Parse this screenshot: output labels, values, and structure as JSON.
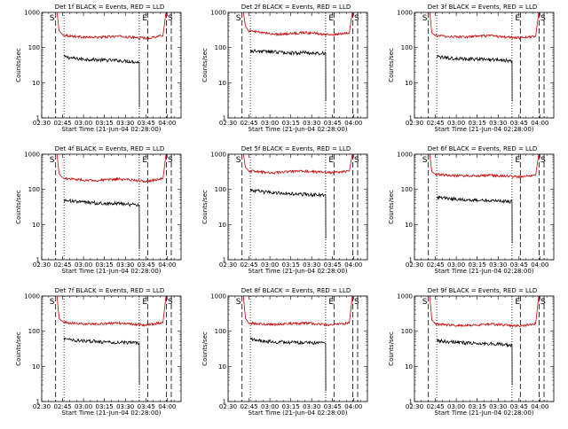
{
  "figure": {
    "xlabel": "Start Time (21-Jun-04 02:28:00)",
    "ylabel": "Counts/sec",
    "x_ticks": [
      "02:30",
      "02:45",
      "03:00",
      "03:15",
      "03:30",
      "03:45",
      "04:00"
    ],
    "y_ticks": [
      "1",
      "10",
      "100",
      "1000"
    ],
    "marker_labels": [
      "S",
      "E",
      "S"
    ],
    "colors": {
      "events": "#000000",
      "lld": "#cc0000",
      "axes": "#000000"
    }
  },
  "chart_data": [
    {
      "type": "line",
      "title": "Det 1f BLACK = Events, RED = LLD",
      "xlabel": "Start Time (21-Jun-04 02:28:00)",
      "ylabel": "Counts/sec",
      "yscale": "log",
      "ylim": [
        1,
        1000
      ],
      "xlim_min": [
        150,
        250
      ],
      "x_ticks": [
        "02:30",
        "02:45",
        "03:00",
        "03:15",
        "03:30",
        "03:45",
        "04:00"
      ],
      "markers": {
        "dashed": [
          160,
          226,
          239.5,
          243
        ],
        "dotted": [
          166,
          220
        ]
      },
      "series": [
        {
          "name": "Events",
          "color": "#000000",
          "x": [
            166,
            175,
            185,
            195,
            205,
            215,
            220,
            220.1
          ],
          "y": [
            55,
            48,
            46,
            44,
            43,
            40,
            38,
            2
          ]
        },
        {
          "name": "LLD",
          "color": "#cc0000",
          "x": [
            161,
            162.5,
            165,
            175,
            185,
            195,
            205,
            215,
            225,
            237,
            239.2
          ],
          "y": [
            1000,
            300,
            230,
            205,
            195,
            200,
            210,
            195,
            185,
            220,
            1000
          ]
        }
      ]
    },
    {
      "type": "line",
      "title": "Det 2f BLACK = Events, RED = LLD",
      "xlabel": "Start Time (21-Jun-04 02:28:00)",
      "ylabel": "Counts/sec",
      "yscale": "log",
      "ylim": [
        1,
        1000
      ],
      "xlim_min": [
        150,
        250
      ],
      "x_ticks": [
        "02:30",
        "02:45",
        "03:00",
        "03:15",
        "03:30",
        "03:45",
        "04:00"
      ],
      "markers": {
        "dashed": [
          160,
          226,
          239.5,
          243
        ],
        "dotted": [
          166,
          220
        ]
      },
      "series": [
        {
          "name": "Events",
          "color": "#000000",
          "x": [
            166,
            175,
            185,
            195,
            205,
            215,
            220,
            220.1
          ],
          "y": [
            80,
            78,
            75,
            70,
            72,
            68,
            70,
            3
          ]
        },
        {
          "name": "LLD",
          "color": "#cc0000",
          "x": [
            161,
            162.5,
            165,
            175,
            185,
            195,
            205,
            215,
            225,
            237,
            239.2
          ],
          "y": [
            1000,
            400,
            300,
            260,
            240,
            250,
            270,
            250,
            230,
            260,
            1000
          ]
        }
      ]
    },
    {
      "type": "line",
      "title": "Det 3f BLACK = Events, RED = LLD",
      "xlabel": "Start Time (21-Jun-04 02:28:00)",
      "ylabel": "Counts/sec",
      "yscale": "log",
      "ylim": [
        1,
        1000
      ],
      "xlim_min": [
        150,
        250
      ],
      "x_ticks": [
        "02:30",
        "02:45",
        "03:00",
        "03:15",
        "03:30",
        "03:45",
        "04:00"
      ],
      "markers": {
        "dashed": [
          160,
          226,
          239.5,
          243
        ],
        "dotted": [
          166,
          220
        ]
      },
      "series": [
        {
          "name": "Events",
          "color": "#000000",
          "x": [
            166,
            175,
            185,
            195,
            205,
            215,
            220,
            220.1
          ],
          "y": [
            55,
            50,
            48,
            47,
            46,
            44,
            42,
            3
          ]
        },
        {
          "name": "LLD",
          "color": "#cc0000",
          "x": [
            161,
            162.5,
            165,
            175,
            185,
            195,
            205,
            215,
            225,
            237,
            239.2
          ],
          "y": [
            1000,
            260,
            220,
            205,
            200,
            210,
            215,
            200,
            190,
            210,
            1000
          ]
        }
      ]
    },
    {
      "type": "line",
      "title": "Det 4f BLACK = Events, RED = LLD",
      "xlabel": "Start Time (21-Jun-04 02:28:00)",
      "ylabel": "Counts/sec",
      "yscale": "log",
      "ylim": [
        1,
        1000
      ],
      "xlim_min": [
        150,
        250
      ],
      "x_ticks": [
        "02:30",
        "02:45",
        "03:00",
        "03:15",
        "03:30",
        "03:45",
        "04:00"
      ],
      "markers": {
        "dashed": [
          160,
          226,
          239.5,
          243
        ],
        "dotted": [
          166,
          220
        ]
      },
      "series": [
        {
          "name": "Events",
          "color": "#000000",
          "x": [
            166,
            175,
            185,
            195,
            205,
            215,
            220,
            220.1
          ],
          "y": [
            50,
            45,
            42,
            40,
            40,
            37,
            35,
            2
          ]
        },
        {
          "name": "LLD",
          "color": "#cc0000",
          "x": [
            161,
            162.5,
            165,
            175,
            185,
            195,
            205,
            215,
            225,
            237,
            239.2
          ],
          "y": [
            1000,
            280,
            210,
            190,
            180,
            185,
            195,
            185,
            170,
            200,
            1000
          ]
        }
      ]
    },
    {
      "type": "line",
      "title": "Det 5f BLACK = Events, RED = LLD",
      "xlabel": "Start Time (21-Jun-04 02:28:00)",
      "ylabel": "Counts/sec",
      "yscale": "log",
      "ylim": [
        1,
        1000
      ],
      "xlim_min": [
        150,
        250
      ],
      "x_ticks": [
        "02:30",
        "02:45",
        "03:00",
        "03:15",
        "03:30",
        "03:45",
        "04:00"
      ],
      "markers": {
        "dashed": [
          160,
          226,
          239.5,
          243
        ],
        "dotted": [
          166,
          220
        ]
      },
      "series": [
        {
          "name": "Events",
          "color": "#000000",
          "x": [
            166,
            175,
            185,
            195,
            205,
            215,
            220,
            220.1
          ],
          "y": [
            95,
            85,
            80,
            75,
            72,
            70,
            70,
            4
          ]
        },
        {
          "name": "LLD",
          "color": "#cc0000",
          "x": [
            161,
            162.5,
            165,
            175,
            185,
            195,
            205,
            215,
            225,
            237,
            239.2
          ],
          "y": [
            1000,
            420,
            340,
            310,
            300,
            320,
            330,
            310,
            300,
            330,
            1000
          ]
        }
      ]
    },
    {
      "type": "line",
      "title": "Det 6f BLACK = Events, RED = LLD",
      "xlabel": "Start Time (21-Jun-04 02:28:00)",
      "ylabel": "Counts/sec",
      "yscale": "log",
      "ylim": [
        1,
        1000
      ],
      "xlim_min": [
        150,
        250
      ],
      "x_ticks": [
        "02:30",
        "02:45",
        "03:00",
        "03:15",
        "03:30",
        "03:45",
        "04:00"
      ],
      "markers": {
        "dashed": [
          160,
          226,
          239.5,
          243
        ],
        "dotted": [
          166,
          220
        ]
      },
      "series": [
        {
          "name": "Events",
          "color": "#000000",
          "x": [
            166,
            175,
            185,
            195,
            205,
            215,
            220,
            220.1
          ],
          "y": [
            60,
            55,
            52,
            50,
            48,
            46,
            45,
            3
          ]
        },
        {
          "name": "LLD",
          "color": "#cc0000",
          "x": [
            161,
            162.5,
            165,
            175,
            185,
            195,
            205,
            215,
            225,
            237,
            239.2
          ],
          "y": [
            1000,
            320,
            270,
            250,
            240,
            245,
            250,
            240,
            230,
            250,
            1000
          ]
        }
      ]
    },
    {
      "type": "line",
      "title": "Det 7f BLACK = Events, RED = LLD",
      "xlabel": "Start Time (21-Jun-04 02:28:00)",
      "ylabel": "Counts/sec",
      "yscale": "log",
      "ylim": [
        1,
        1000
      ],
      "xlim_min": [
        150,
        250
      ],
      "x_ticks": [
        "02:30",
        "02:45",
        "03:00",
        "03:15",
        "03:30",
        "03:45",
        "04:00"
      ],
      "markers": {
        "dashed": [
          160,
          226,
          239.5,
          243
        ],
        "dotted": [
          166,
          220
        ]
      },
      "series": [
        {
          "name": "Events",
          "color": "#000000",
          "x": [
            166,
            175,
            185,
            195,
            205,
            215,
            220,
            220.1
          ],
          "y": [
            60,
            55,
            52,
            50,
            48,
            47,
            45,
            3
          ]
        },
        {
          "name": "LLD",
          "color": "#cc0000",
          "x": [
            161,
            162.5,
            165,
            175,
            185,
            195,
            205,
            215,
            225,
            237,
            239.2
          ],
          "y": [
            1000,
            230,
            180,
            165,
            160,
            165,
            170,
            160,
            150,
            175,
            1000
          ]
        }
      ]
    },
    {
      "type": "line",
      "title": "Det 8f BLACK = Events, RED = LLD",
      "xlabel": "Start Time (21-Jun-04 02:28:00)",
      "ylabel": "Counts/sec",
      "yscale": "log",
      "ylim": [
        1,
        1000
      ],
      "xlim_min": [
        150,
        250
      ],
      "x_ticks": [
        "02:30",
        "02:45",
        "03:00",
        "03:15",
        "03:30",
        "03:45",
        "04:00"
      ],
      "markers": {
        "dashed": [
          160,
          226,
          239.5,
          243
        ],
        "dotted": [
          166,
          220
        ]
      },
      "series": [
        {
          "name": "Events",
          "color": "#000000",
          "x": [
            166,
            175,
            185,
            195,
            205,
            215,
            220,
            220.1
          ],
          "y": [
            60,
            52,
            50,
            48,
            47,
            46,
            45,
            2
          ]
        },
        {
          "name": "LLD",
          "color": "#cc0000",
          "x": [
            161,
            162.5,
            165,
            175,
            185,
            195,
            205,
            215,
            225,
            237,
            239.2
          ],
          "y": [
            1000,
            230,
            170,
            160,
            155,
            165,
            170,
            160,
            150,
            170,
            1000
          ]
        }
      ]
    },
    {
      "type": "line",
      "title": "Det 9f BLACK = Events, RED = LLD",
      "xlabel": "Start Time (21-Jun-04 02:28:00)",
      "ylabel": "Counts/sec",
      "yscale": "log",
      "ylim": [
        1,
        1000
      ],
      "xlim_min": [
        150,
        250
      ],
      "x_ticks": [
        "02:30",
        "02:45",
        "03:00",
        "03:15",
        "03:30",
        "03:45",
        "04:00"
      ],
      "markers": {
        "dashed": [
          160,
          226,
          239.5,
          243
        ],
        "dotted": [
          166,
          220
        ]
      },
      "series": [
        {
          "name": "Events",
          "color": "#000000",
          "x": [
            166,
            175,
            185,
            195,
            205,
            215,
            220,
            220.1
          ],
          "y": [
            55,
            50,
            47,
            45,
            44,
            42,
            40,
            3
          ]
        },
        {
          "name": "LLD",
          "color": "#cc0000",
          "x": [
            161,
            162.5,
            165,
            175,
            185,
            195,
            205,
            215,
            225,
            237,
            239.2
          ],
          "y": [
            1000,
            210,
            160,
            150,
            145,
            150,
            160,
            150,
            140,
            165,
            1000
          ]
        }
      ]
    }
  ]
}
